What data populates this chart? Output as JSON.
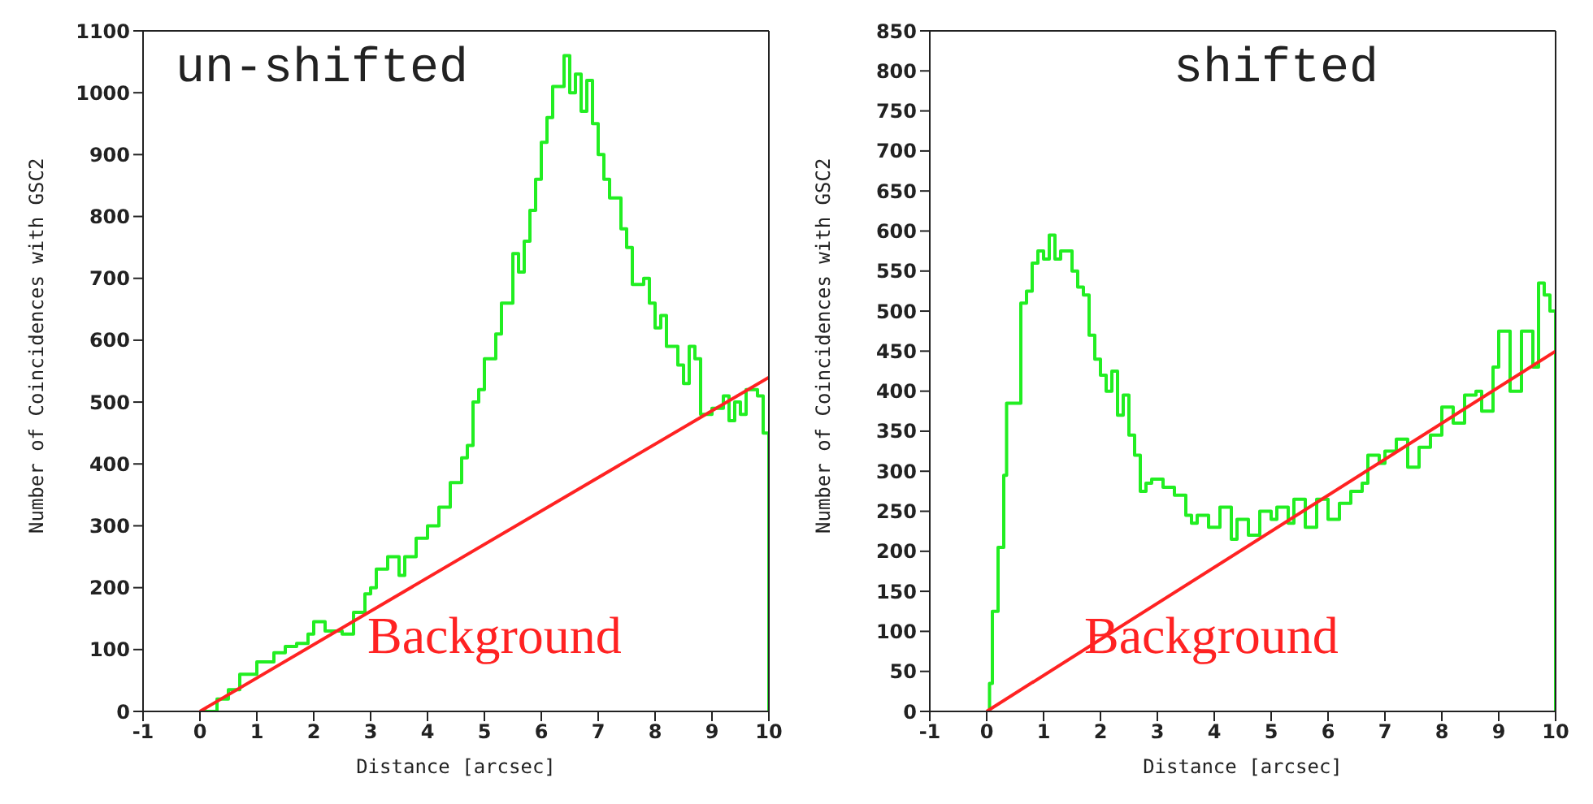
{
  "chart_data": [
    {
      "type": "step",
      "title": "un-shifted",
      "xlabel": "Distance [arcsec]",
      "ylabel": "Number of Coincidences with GSC2",
      "xlim": [
        -1,
        10
      ],
      "xticks": [
        -1,
        0,
        1,
        2,
        3,
        4,
        5,
        6,
        7,
        8,
        9,
        10
      ],
      "ylim": [
        0,
        1100
      ],
      "yticks": [
        0,
        100,
        200,
        300,
        400,
        500,
        600,
        700,
        800,
        900,
        1000,
        1100
      ],
      "legend": false,
      "series": [
        {
          "color": "#22ee22",
          "x": [
            0,
            0.3,
            0.5,
            0.7,
            0.9,
            1.0,
            1.3,
            1.5,
            1.7,
            1.9,
            2.0,
            2.2,
            2.5,
            2.7,
            2.9,
            3.0,
            3.1,
            3.3,
            3.5,
            3.6,
            3.8,
            4.0,
            4.2,
            4.4,
            4.6,
            4.7,
            4.8,
            4.9,
            5.0,
            5.2,
            5.3,
            5.5,
            5.6,
            5.7,
            5.8,
            5.9,
            6.0,
            6.1,
            6.2,
            6.4,
            6.5,
            6.6,
            6.7,
            6.8,
            6.9,
            7.0,
            7.1,
            7.2,
            7.4,
            7.5,
            7.6,
            7.8,
            7.9,
            8.0,
            8.1,
            8.2,
            8.4,
            8.5,
            8.6,
            8.7,
            8.8,
            9.0,
            9.2,
            9.3,
            9.4,
            9.5,
            9.6,
            9.8,
            9.9,
            10.0
          ],
          "values": [
            0,
            20,
            35,
            60,
            60,
            80,
            95,
            105,
            110,
            125,
            145,
            130,
            125,
            160,
            190,
            200,
            230,
            250,
            220,
            250,
            280,
            300,
            330,
            370,
            410,
            430,
            500,
            520,
            570,
            610,
            660,
            740,
            710,
            760,
            810,
            860,
            920,
            960,
            1010,
            1060,
            1000,
            1030,
            970,
            1020,
            950,
            900,
            860,
            830,
            780,
            750,
            690,
            700,
            660,
            620,
            640,
            590,
            560,
            530,
            590,
            570,
            480,
            490,
            510,
            470,
            500,
            480,
            520,
            510,
            450,
            0
          ]
        },
        {
          "type": "line",
          "name": "Background",
          "color": "#ff2222",
          "x": [
            0,
            10
          ],
          "values": [
            0,
            540
          ]
        }
      ]
    },
    {
      "type": "step",
      "title": "shifted",
      "xlabel": "Distance [arcsec]",
      "ylabel": "Number of Coincidences with GSC2",
      "xlim": [
        -1,
        10
      ],
      "xticks": [
        -1,
        0,
        1,
        2,
        3,
        4,
        5,
        6,
        7,
        8,
        9,
        10
      ],
      "ylim": [
        0,
        850
      ],
      "yticks": [
        0,
        50,
        100,
        150,
        200,
        250,
        300,
        350,
        400,
        450,
        500,
        550,
        600,
        650,
        700,
        750,
        800,
        850
      ],
      "legend": false,
      "series": [
        {
          "color": "#22ee22",
          "x": [
            0,
            0.05,
            0.1,
            0.2,
            0.3,
            0.35,
            0.6,
            0.7,
            0.8,
            0.9,
            1.0,
            1.1,
            1.2,
            1.3,
            1.5,
            1.6,
            1.7,
            1.8,
            1.9,
            2.0,
            2.1,
            2.2,
            2.3,
            2.4,
            2.5,
            2.6,
            2.7,
            2.8,
            2.9,
            3.1,
            3.3,
            3.5,
            3.6,
            3.7,
            3.9,
            4.1,
            4.3,
            4.4,
            4.6,
            4.8,
            5.0,
            5.1,
            5.3,
            5.4,
            5.6,
            5.8,
            6.0,
            6.2,
            6.4,
            6.6,
            6.7,
            6.9,
            7.0,
            7.2,
            7.4,
            7.6,
            7.8,
            8.0,
            8.2,
            8.4,
            8.6,
            8.7,
            8.9,
            9.0,
            9.2,
            9.4,
            9.6,
            9.7,
            9.8,
            9.9,
            10.0
          ],
          "values": [
            0,
            35,
            125,
            205,
            295,
            385,
            510,
            525,
            560,
            575,
            565,
            595,
            565,
            575,
            550,
            530,
            520,
            470,
            440,
            420,
            400,
            425,
            370,
            395,
            345,
            320,
            275,
            285,
            290,
            280,
            270,
            245,
            235,
            245,
            230,
            255,
            215,
            240,
            220,
            250,
            240,
            255,
            235,
            265,
            230,
            265,
            240,
            260,
            275,
            285,
            320,
            310,
            325,
            340,
            305,
            330,
            345,
            380,
            360,
            395,
            400,
            375,
            430,
            475,
            400,
            475,
            430,
            535,
            520,
            500,
            0
          ]
        },
        {
          "type": "line",
          "name": "Background",
          "color": "#ff2222",
          "x": [
            0,
            10
          ],
          "values": [
            0,
            450
          ]
        }
      ]
    }
  ]
}
